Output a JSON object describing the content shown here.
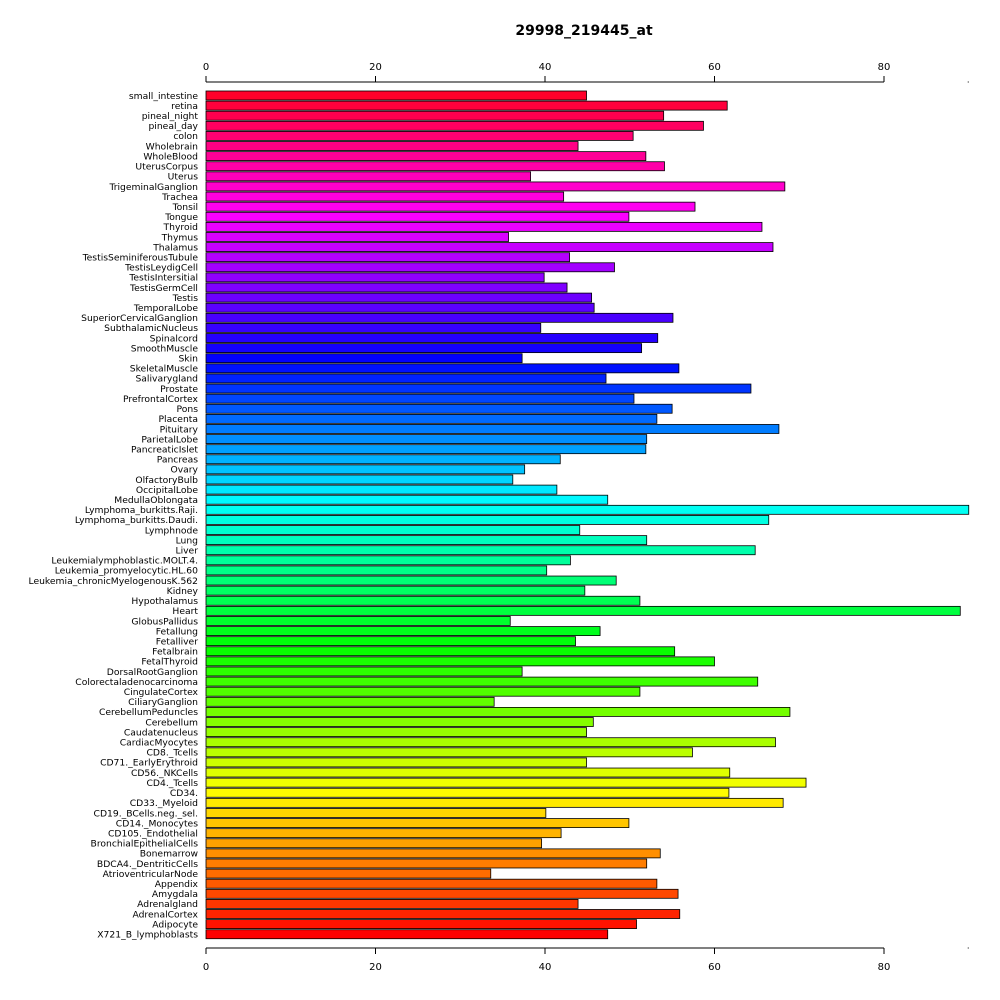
{
  "chart_data": {
    "type": "bar",
    "orientation": "horizontal",
    "title": "29998_219445_at",
    "xlabel": "",
    "ylabel": "",
    "xlim": [
      0,
      90
    ],
    "xticks": [
      0,
      20,
      40,
      60,
      80
    ],
    "grid": false,
    "legend": "none",
    "colormap": "rainbow (red at bottom through yellow, green, cyan, blue, magenta to red at top)",
    "categories": [
      "small_intestine",
      "retina",
      "pineal_night",
      "pineal_day",
      "colon",
      "Wholebrain",
      "WholeBlood",
      "UterusCorpus",
      "Uterus",
      "TrigeminalGanglion",
      "Trachea",
      "Tonsil",
      "Tongue",
      "Thyroid",
      "Thymus",
      "Thalamus",
      "TestisSeminiferousTubule",
      "TestisLeydigCell",
      "TestisIntersitial",
      "TestisGermCell",
      "Testis",
      "TemporalLobe",
      "SuperiorCervicalGanglion",
      "SubthalamicNucleus",
      "Spinalcord",
      "SmoothMuscle",
      "Skin",
      "SkeletalMuscle",
      "Salivarygland",
      "Prostate",
      "PrefrontalCortex",
      "Pons",
      "Placenta",
      "Pituitary",
      "ParietalLobe",
      "PancreaticIslet",
      "Pancreas",
      "Ovary",
      "OlfactoryBulb",
      "OccipitalLobe",
      "MedullaOblongata",
      "Lymphoma_burkitts.Raji.",
      "Lymphoma_burkitts.Daudi.",
      "Lymphnode",
      "Lung",
      "Liver",
      "Leukemialymphoblastic.MOLT.4.",
      "Leukemia_promyelocytic.HL.60",
      "Leukemia_chronicMyelogenousK.562",
      "Kidney",
      "Hypothalamus",
      "Heart",
      "GlobusPallidus",
      "Fetallung",
      "Fetalliver",
      "Fetalbrain",
      "FetalThyroid",
      "DorsalRootGanglion",
      "Colorectaladenocarcinoma",
      "CingulateCortex",
      "CiliaryGanglion",
      "CerebellumPeduncles",
      "Cerebellum",
      "Caudatenucleus",
      "CardiacMyocytes",
      "CD8._Tcells",
      "CD71._EarlyErythroid",
      "CD56._NKCells",
      "CD4._Tcells",
      "CD34.",
      "CD33._Myeloid",
      "CD19._BCells.neg._sel.",
      "CD14._Monocytes",
      "CD105._Endothelial",
      "BronchialEpithelialCells",
      "Bonemarrow",
      "BDCA4._DentriticCells",
      "AtrioventricularNode",
      "Appendix",
      "Amygdala",
      "Adrenalgland",
      "AdrenalCortex",
      "Adipocyte",
      "X721_B_lymphoblasts"
    ],
    "values": [
      44.9,
      61.5,
      54.0,
      58.7,
      50.4,
      43.9,
      51.9,
      54.1,
      38.3,
      68.3,
      42.2,
      57.7,
      49.9,
      65.6,
      35.7,
      66.9,
      42.9,
      48.2,
      39.9,
      42.6,
      45.5,
      45.8,
      55.1,
      39.5,
      53.3,
      51.4,
      37.3,
      55.8,
      47.2,
      64.3,
      50.5,
      55.0,
      53.2,
      67.6,
      52.0,
      51.9,
      41.8,
      37.6,
      36.2,
      41.4,
      47.4,
      90.0,
      66.4,
      44.1,
      52.0,
      64.8,
      43.0,
      40.2,
      48.4,
      44.7,
      51.2,
      89.0,
      35.9,
      46.5,
      43.6,
      55.3,
      60.0,
      37.3,
      65.1,
      51.2,
      34.0,
      68.9,
      45.7,
      44.9,
      67.2,
      57.4,
      44.9,
      61.8,
      70.8,
      61.7,
      68.1,
      40.1,
      49.9,
      41.9,
      39.6,
      53.6,
      52.0,
      33.6,
      53.2,
      55.7,
      43.9,
      55.9,
      50.8,
      47.4
    ]
  }
}
